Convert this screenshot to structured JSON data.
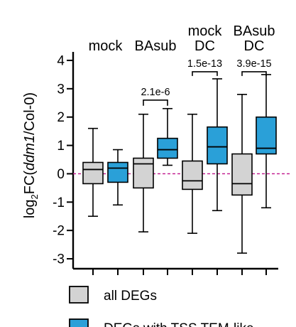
{
  "chart_data": {
    "type": "box",
    "ylabel": {
      "prefix": "log",
      "sub": "2",
      "mid": "FC(",
      "italic": "ddm1",
      "suffix": "/Col-0)"
    },
    "ylim": [
      -3.35,
      4.3
    ],
    "yticks": [
      -3,
      -2,
      -1,
      0,
      1,
      2,
      3,
      4
    ],
    "reference_line": {
      "y": 0,
      "color": "#c0148c",
      "style": "dashed"
    },
    "conditions": [
      {
        "label_lines": [
          "mock"
        ]
      },
      {
        "label_lines": [
          "BAsub"
        ]
      },
      {
        "label_lines": [
          "mock",
          "DC"
        ]
      },
      {
        "label_lines": [
          "BAsub",
          "DC"
        ]
      }
    ],
    "series": [
      {
        "name": "all DEGs",
        "color": "#d3d3d3"
      },
      {
        "name": "DEGs with TSS TEM-like",
        "color": "#2aa0d8"
      }
    ],
    "boxes": [
      {
        "condition": 0,
        "series": 0,
        "min": -1.5,
        "q1": -0.35,
        "median": 0.15,
        "q3": 0.4,
        "max": 1.6
      },
      {
        "condition": 0,
        "series": 1,
        "min": -1.1,
        "q1": -0.3,
        "median": 0.2,
        "q3": 0.4,
        "max": 0.85
      },
      {
        "condition": 1,
        "series": 0,
        "min": -2.05,
        "q1": -0.5,
        "median": 0.35,
        "q3": 0.55,
        "max": 2.1
      },
      {
        "condition": 1,
        "series": 1,
        "min": 0.3,
        "q1": 0.55,
        "median": 0.85,
        "q3": 1.25,
        "max": 2.3
      },
      {
        "condition": 2,
        "series": 0,
        "min": -2.1,
        "q1": -0.55,
        "median": -0.25,
        "q3": 0.45,
        "max": 2.1
      },
      {
        "condition": 2,
        "series": 1,
        "min": -1.3,
        "q1": 0.35,
        "median": 0.95,
        "q3": 1.65,
        "max": 3.35
      },
      {
        "condition": 3,
        "series": 0,
        "min": -2.8,
        "q1": -0.75,
        "median": -0.35,
        "q3": 0.7,
        "max": 2.8
      },
      {
        "condition": 3,
        "series": 1,
        "min": -1.2,
        "q1": 0.7,
        "median": 0.9,
        "q3": 2.0,
        "max": 3.5
      }
    ],
    "pvalues": [
      {
        "condition": 1,
        "label": "2.1e-6",
        "bar_y": 2.6,
        "tick_to": 2.4
      },
      {
        "condition": 2,
        "label": "1.5e-13",
        "bar_y": 3.6,
        "tick_to": 3.45
      },
      {
        "condition": 3,
        "label": "3.9e-15",
        "bar_y": 3.6,
        "tick_to": 3.45
      }
    ],
    "legend": {
      "placement": "bottom-left",
      "entries": [
        "all DEGs",
        "DEGs with TSS TEM-like"
      ]
    }
  }
}
